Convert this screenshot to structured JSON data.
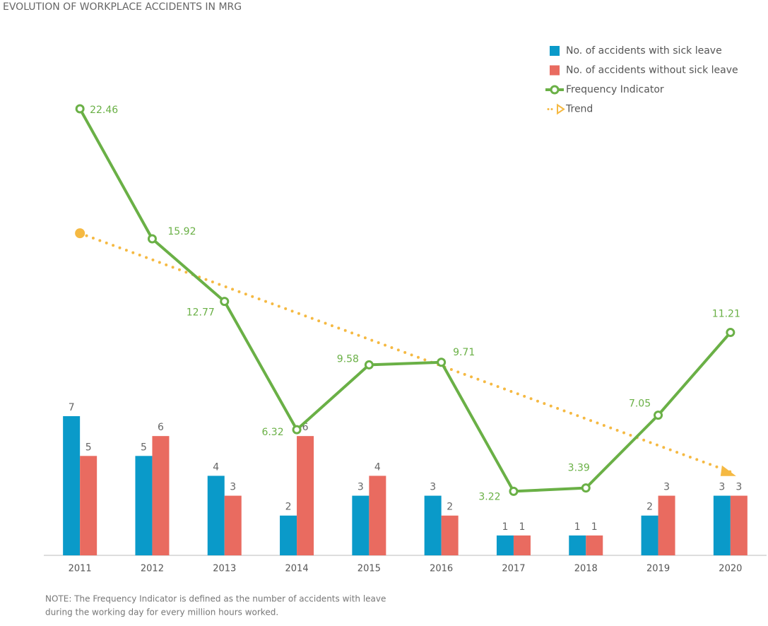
{
  "chart_data": {
    "type": "bar",
    "title": "EVOLUTION OF WORKPLACE ACCIDENTS IN MRG",
    "categories": [
      "2011",
      "2012",
      "2013",
      "2014",
      "2015",
      "2016",
      "2017",
      "2018",
      "2019",
      "2020"
    ],
    "ylim": [
      0,
      25
    ],
    "grid": false,
    "legend": "top-right",
    "series": [
      {
        "name": "No. of accidents with sick leave",
        "type": "bar",
        "color": "#0a9ac9",
        "values": [
          7,
          5,
          4,
          2,
          3,
          3,
          1,
          1,
          2,
          3
        ]
      },
      {
        "name": "No. of accidents without sick leave",
        "type": "bar",
        "color": "#e96b60",
        "values": [
          5,
          6,
          3,
          6,
          4,
          2,
          1,
          1,
          3,
          3
        ]
      },
      {
        "name": "Frequency Indicator",
        "type": "line",
        "color": "#6ab046",
        "values": [
          22.46,
          15.92,
          12.77,
          6.32,
          9.58,
          9.71,
          3.22,
          3.39,
          7.05,
          11.21
        ]
      },
      {
        "name": "Trend",
        "type": "trend",
        "color": "#f5b942",
        "values": [
          16.2,
          14.87,
          13.53,
          12.2,
          10.87,
          9.53,
          8.2,
          6.87,
          5.53,
          4.2
        ]
      }
    ],
    "note": [
      "NOTE: The Frequency Indicator is defined as the number of accidents with leave",
      "during the working day for every million hours worked."
    ]
  }
}
